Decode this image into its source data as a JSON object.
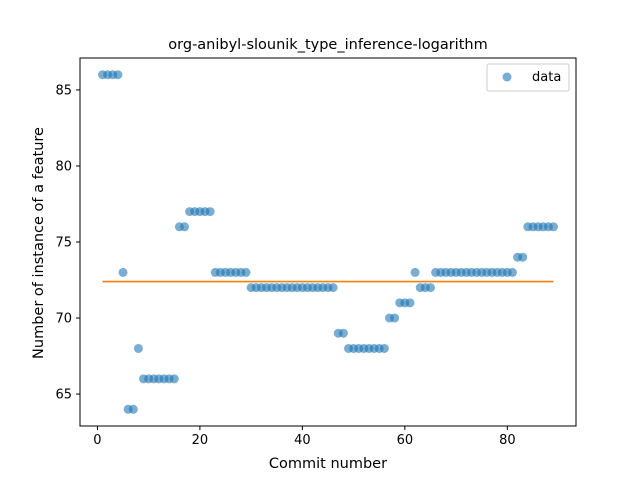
{
  "chart_data": {
    "type": "scatter",
    "title": "org-anibyl-slounik_type_inference-logarithm",
    "xlabel": "Commit number",
    "ylabel": "Number of instance of a feature",
    "xlim": [
      -3.4,
      93.4
    ],
    "ylim": [
      62.9,
      87.1
    ],
    "xticks": [
      0,
      20,
      40,
      60,
      80
    ],
    "yticks": [
      65,
      70,
      75,
      80,
      85
    ],
    "grid": false,
    "legend_position": "top-right",
    "colors": {
      "points": "#1f77b4",
      "mean_line": "#ff7f0e"
    },
    "series": [
      {
        "name": "data",
        "x": [
          1,
          2,
          3,
          4,
          5,
          6,
          7,
          8,
          9,
          10,
          11,
          12,
          13,
          14,
          15,
          16,
          17,
          18,
          19,
          20,
          21,
          22,
          23,
          24,
          25,
          26,
          27,
          28,
          29,
          30,
          31,
          32,
          33,
          34,
          35,
          36,
          37,
          38,
          39,
          40,
          41,
          42,
          43,
          44,
          45,
          46,
          47,
          48,
          49,
          50,
          51,
          52,
          53,
          54,
          55,
          56,
          57,
          58,
          59,
          60,
          61,
          62,
          63,
          64,
          65,
          66,
          67,
          68,
          69,
          70,
          71,
          72,
          73,
          74,
          75,
          76,
          77,
          78,
          79,
          80,
          81,
          82,
          83,
          84,
          85,
          86,
          87,
          88,
          89
        ],
        "y": [
          86,
          86,
          86,
          86,
          73,
          64,
          64,
          68,
          66,
          66,
          66,
          66,
          66,
          66,
          66,
          76,
          76,
          77,
          77,
          77,
          77,
          77,
          73,
          73,
          73,
          73,
          73,
          73,
          73,
          72,
          72,
          72,
          72,
          72,
          72,
          72,
          72,
          72,
          72,
          72,
          72,
          72,
          72,
          72,
          72,
          72,
          69,
          69,
          68,
          68,
          68,
          68,
          68,
          68,
          68,
          68,
          70,
          70,
          71,
          71,
          71,
          73,
          72,
          72,
          72,
          73,
          73,
          73,
          73,
          73,
          73,
          73,
          73,
          73,
          73,
          73,
          73,
          73,
          73,
          73,
          73,
          74,
          74,
          76,
          76,
          76,
          76,
          76,
          76
        ]
      }
    ],
    "mean_line": {
      "x": [
        1,
        89
      ],
      "y": [
        72.4,
        72.4
      ]
    }
  }
}
